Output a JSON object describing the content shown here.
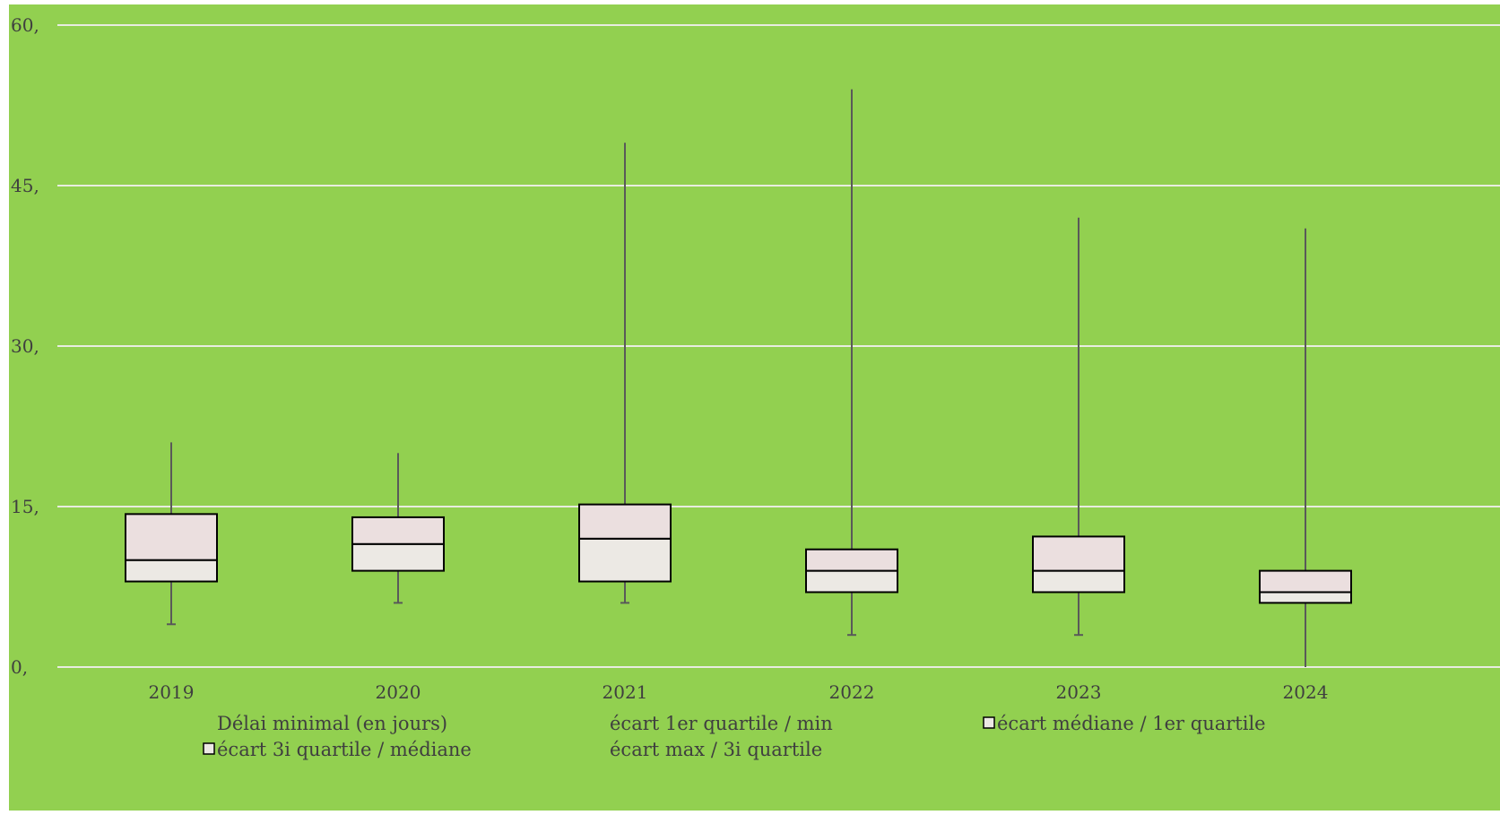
{
  "chart_data": {
    "type": "boxplot",
    "background_color": "#92d050",
    "box_fill_upper": "#ebdfdf",
    "box_fill_lower": "#ece9e4",
    "whisker_color": "#595959",
    "gridline_color": "#e8ece0",
    "grid": true,
    "ylim": [
      0,
      60
    ],
    "yticks": [
      0,
      15,
      30,
      45,
      60
    ],
    "ytick_labels": [
      "0,",
      "15,",
      "30,",
      "45,",
      "60,"
    ],
    "categories": [
      "2019",
      "2020",
      "2021",
      "2022",
      "2023",
      "2024"
    ],
    "boxes": [
      {
        "category": "2019",
        "min": 4,
        "q1": 8,
        "median": 10,
        "q3": 14.3,
        "max": 21
      },
      {
        "category": "2020",
        "min": 6,
        "q1": 9,
        "median": 11.5,
        "q3": 14,
        "max": 20
      },
      {
        "category": "2021",
        "min": 6,
        "q1": 8,
        "median": 12,
        "q3": 15.2,
        "max": 49
      },
      {
        "category": "2022",
        "min": 3,
        "q1": 7,
        "median": 9,
        "q3": 11,
        "max": 54
      },
      {
        "category": "2023",
        "min": 3,
        "q1": 7,
        "median": 9,
        "q3": 12.2,
        "max": 42
      },
      {
        "category": "2024",
        "min": 0,
        "q1": 6,
        "median": 7,
        "q3": 9,
        "max": 41
      }
    ],
    "legend": [
      {
        "label": "Délai minimal (en jours)",
        "marker": false
      },
      {
        "label": "écart 1er quartile / min",
        "marker": false
      },
      {
        "label": "écart médiane / 1er quartile",
        "marker": true
      },
      {
        "label": "écart 3i quartile / médiane",
        "marker": true
      },
      {
        "label": "écart max / 3i quartile",
        "marker": false
      }
    ],
    "legend_position": "bottom"
  }
}
